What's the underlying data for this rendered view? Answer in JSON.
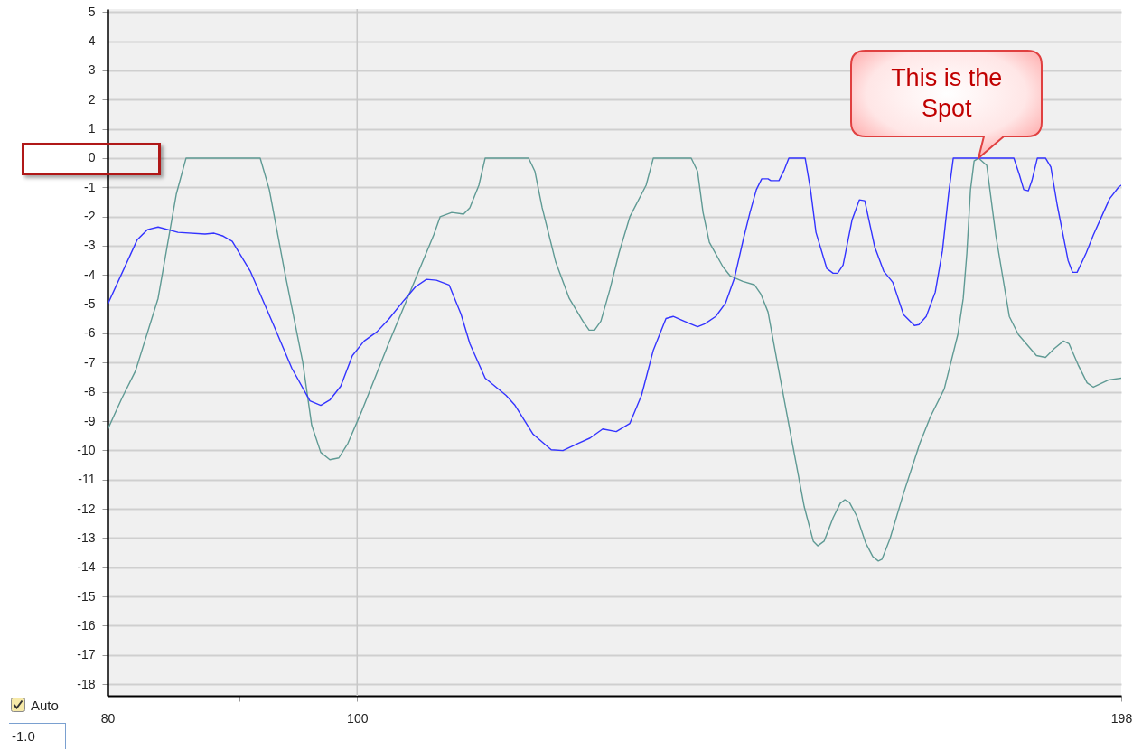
{
  "chart_data": {
    "type": "line",
    "log": "x",
    "xlim": [
      80,
      198
    ],
    "ylim": [
      -18.4,
      5.1
    ],
    "xticks": [
      80,
      {
        "value": 90,
        "label": null
      },
      100,
      198
    ],
    "yticks": [
      -18,
      -17,
      -16,
      -15,
      -14,
      -13,
      -12,
      -11,
      -10,
      -9,
      -8,
      -7,
      -6,
      -5,
      -4,
      -3,
      -2,
      -1,
      0,
      1,
      2,
      3,
      4,
      5
    ],
    "grid": "y",
    "line_style": "solid",
    "ref_lines": [
      {
        "axis": "x",
        "value": 100,
        "color": "#c8c8c8"
      }
    ],
    "annotations": [
      {
        "text": "This is the Spot",
        "x": 174.3,
        "y": 0
      },
      "Auto",
      "-1.0"
    ],
    "series": [
      {
        "color": "#5f9a94",
        "x": [
          80,
          81.04,
          82.03,
          83.7,
          85.07,
          85.82,
          91.7,
          92.45,
          93.72,
          95.25,
          96.02,
          96.8,
          97.59,
          98.38,
          99.18,
          100.39,
          102.85,
          104.95,
          107.09,
          107.7,
          108.83,
          109.98,
          110.6,
          111.5,
          112.13,
          116.57,
          117.23,
          117.99,
          119.43,
          120.88,
          122.36,
          123.05,
          123.65,
          124.35,
          125.36,
          126.38,
          127.61,
          129.48,
          130.32,
          134.81,
          135.58,
          136.24,
          137.01,
          138.68,
          139.58,
          141.17,
          142.66,
          143.46,
          144.39,
          145.57,
          147.34,
          149.14,
          150.35,
          150.95,
          151.81,
          153.04,
          154.03,
          154.66,
          155.28,
          156.29,
          157.56,
          158.58,
          159.35,
          159.87,
          161.03,
          162.99,
          165.38,
          166.99,
          169.03,
          171.09,
          171.92,
          172.48,
          173.04,
          173.6,
          174.3,
          175.57,
          176.99,
          179.15,
          180.6,
          183.55,
          185.04,
          186.54,
          188.05,
          188.96,
          190.5,
          192.04,
          193.13,
          195.8,
          198
        ],
        "values": [
          -9.3,
          -8.21,
          -7.28,
          -4.8,
          -1.24,
          0,
          0,
          -1.08,
          -3.87,
          -6.97,
          -9.14,
          -10.07,
          -10.32,
          -10.26,
          -9.76,
          -8.68,
          -6.35,
          -4.49,
          -2.63,
          -2.01,
          -1.86,
          -1.92,
          -1.7,
          -0.93,
          0,
          0,
          -0.46,
          -1.7,
          -3.56,
          -4.8,
          -5.58,
          -5.89,
          -5.89,
          -5.58,
          -4.49,
          -3.25,
          -2.01,
          -0.93,
          0,
          0,
          -0.46,
          -1.86,
          -2.88,
          -3.72,
          -4.03,
          -4.22,
          -4.34,
          -4.65,
          -5.27,
          -6.97,
          -9.45,
          -11.93,
          -13.11,
          -13.27,
          -13.11,
          -12.31,
          -11.81,
          -11.69,
          -11.78,
          -12.24,
          -13.17,
          -13.64,
          -13.79,
          -13.73,
          -13.02,
          -11.47,
          -9.76,
          -8.83,
          -7.9,
          -6.04,
          -4.8,
          -3.25,
          -1.08,
          -0.1,
          0,
          -0.25,
          -2.63,
          -5.42,
          -6.04,
          -6.76,
          -6.82,
          -6.51,
          -6.26,
          -6.35,
          -7.07,
          -7.69,
          -7.84,
          -7.59,
          -7.53
        ]
      },
      {
        "color": "#3333ff",
        "x": [
          80,
          82.16,
          82.9,
          83.7,
          85.2,
          87.29,
          88,
          88.72,
          89.44,
          90.89,
          92.82,
          94.33,
          95.87,
          96.8,
          97.59,
          98.54,
          99.58,
          100.63,
          101.77,
          102.85,
          104.27,
          105.37,
          106.4,
          107.35,
          108.57,
          109.72,
          110.6,
          112.13,
          114.24,
          115.16,
          117.04,
          118.95,
          120.2,
          121.86,
          123.15,
          124.55,
          126.07,
          127.61,
          128.95,
          130.32,
          131.8,
          132.65,
          133.94,
          135.58,
          136.46,
          137.79,
          139.02,
          140.14,
          141.28,
          142.08,
          142.89,
          143.58,
          144.39,
          144.75,
          145.8,
          146.51,
          147.1,
          149.26,
          149.98,
          150.71,
          152.18,
          153.04,
          153.66,
          154.41,
          155.66,
          156.67,
          157.43,
          158.84,
          160.12,
          161.42,
          162.99,
          164.58,
          165.25,
          166.32,
          167.67,
          168.76,
          169.71,
          170.4,
          179.88,
          180.75,
          181.48,
          182.22,
          182.81,
          183.7,
          185.04,
          185.93,
          186.99,
          188.81,
          189.58,
          190.34,
          191.89,
          193.13,
          195.96,
          197.55,
          198
        ],
        "values": [
          -5.02,
          -2.79,
          -2.45,
          -2.36,
          -2.54,
          -2.6,
          -2.57,
          -2.67,
          -2.85,
          -3.87,
          -5.73,
          -7.19,
          -8.31,
          -8.46,
          -8.28,
          -7.81,
          -6.76,
          -6.26,
          -5.95,
          -5.52,
          -4.87,
          -4.4,
          -4.15,
          -4.18,
          -4.34,
          -5.33,
          -6.35,
          -7.53,
          -8.12,
          -8.46,
          -9.45,
          -9.98,
          -10.01,
          -9.76,
          -9.58,
          -9.27,
          -9.36,
          -9.08,
          -8.12,
          -6.57,
          -5.49,
          -5.42,
          -5.58,
          -5.77,
          -5.67,
          -5.42,
          -4.96,
          -4.09,
          -2.73,
          -1.86,
          -1.08,
          -0.71,
          -0.71,
          -0.77,
          -0.77,
          -0.4,
          0,
          0,
          -1.08,
          -2.54,
          -3.78,
          -3.94,
          -3.94,
          -3.66,
          -2.11,
          -1.43,
          -1.46,
          -3.04,
          -3.87,
          -4.25,
          -5.36,
          -5.73,
          -5.7,
          -5.42,
          -4.59,
          -3.16,
          -1.18,
          0,
          0,
          -0.56,
          -1.08,
          -1.12,
          -0.77,
          0,
          0,
          -0.31,
          -1.61,
          -3.5,
          -3.91,
          -3.91,
          -3.25,
          -2.63,
          -1.39,
          -0.99,
          -0.93
        ]
      }
    ]
  }
}
